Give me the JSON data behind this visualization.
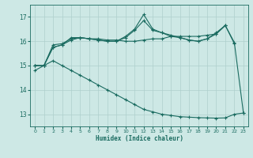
{
  "xlabel": "Humidex (Indice chaleur)",
  "bg_color": "#cde8e5",
  "grid_color": "#aecfcc",
  "line_color": "#1a6b60",
  "xlim": [
    -0.5,
    23.5
  ],
  "ylim": [
    12.5,
    17.5
  ],
  "yticks": [
    13,
    14,
    15,
    16,
    17
  ],
  "xticks": [
    0,
    1,
    2,
    3,
    4,
    5,
    6,
    7,
    8,
    9,
    10,
    11,
    12,
    13,
    14,
    15,
    16,
    17,
    18,
    19,
    20,
    21,
    22,
    23
  ],
  "series": [
    {
      "x": [
        0,
        1,
        2,
        3,
        4,
        5,
        6,
        7,
        8,
        9,
        10,
        11,
        12,
        13,
        14,
        15,
        16,
        17,
        18,
        19,
        20,
        21,
        22,
        23
      ],
      "y": [
        15.0,
        15.0,
        15.85,
        15.9,
        16.1,
        16.15,
        16.1,
        16.1,
        16.05,
        16.05,
        16.0,
        16.0,
        16.05,
        16.1,
        16.1,
        16.2,
        16.2,
        16.2,
        16.2,
        16.25,
        16.3,
        16.65,
        15.95,
        13.05
      ]
    },
    {
      "x": [
        0,
        1,
        2,
        3,
        4,
        5,
        6,
        7,
        8,
        9,
        10,
        11,
        12,
        13,
        14,
        15,
        16,
        17,
        18,
        19,
        20,
        21,
        22
      ],
      "y": [
        15.0,
        15.0,
        15.75,
        15.85,
        16.05,
        16.15,
        16.1,
        16.05,
        16.0,
        16.0,
        16.2,
        16.5,
        17.1,
        16.5,
        16.35,
        16.25,
        16.15,
        16.05,
        16.0,
        16.1,
        16.35,
        16.65,
        15.9
      ]
    },
    {
      "x": [
        0,
        1,
        2,
        3,
        4,
        5,
        6,
        7,
        8,
        9,
        10,
        11,
        12,
        13,
        14,
        15,
        16,
        17,
        18,
        19,
        20,
        21
      ],
      "y": [
        15.0,
        15.0,
        15.75,
        15.85,
        16.15,
        16.15,
        16.1,
        16.05,
        16.0,
        16.0,
        16.15,
        16.45,
        16.85,
        16.45,
        16.35,
        16.2,
        16.15,
        16.05,
        16.0,
        16.1,
        16.3,
        16.65
      ]
    },
    {
      "x": [
        0,
        1,
        2,
        3,
        4,
        5,
        6,
        7,
        8,
        9,
        10,
        11,
        12,
        13,
        14,
        15,
        16,
        17,
        18,
        19,
        20,
        21,
        22,
        23
      ],
      "y": [
        14.8,
        15.0,
        15.2,
        15.0,
        14.8,
        14.6,
        14.4,
        14.2,
        14.0,
        13.8,
        13.6,
        13.4,
        13.2,
        13.1,
        13.0,
        12.95,
        12.9,
        12.88,
        12.86,
        12.85,
        12.84,
        12.85,
        13.0,
        13.05
      ]
    }
  ]
}
